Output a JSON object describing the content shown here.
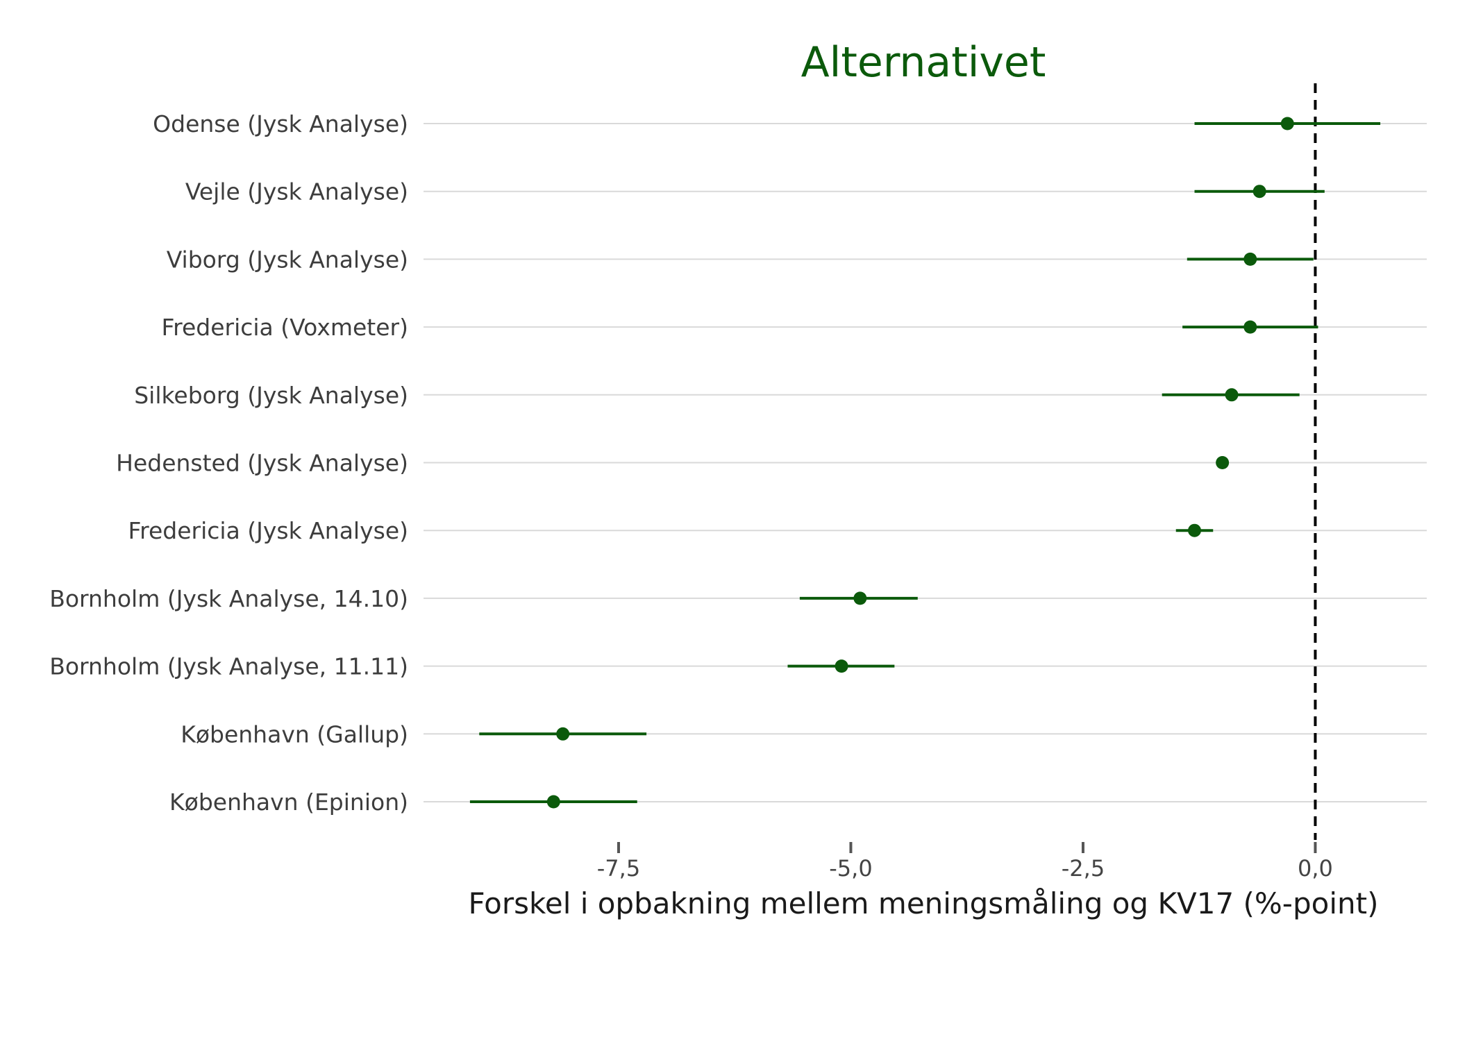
{
  "chart_data": {
    "type": "scatter",
    "title": "Alternativet",
    "xlabel": "Forskel i opbakning mellem meningsmåling og KV17 (%-point)",
    "ylabel": "",
    "xlim": [
      -9.6,
      1.2
    ],
    "x_ticks": [
      -7.5,
      -5.0,
      -2.5,
      0.0
    ],
    "x_tick_labels": [
      "-7,5",
      "-5,0",
      "-2,5",
      "0,0"
    ],
    "reference_line": 0.0,
    "grid": true,
    "color": "#0b5a0b",
    "points": [
      {
        "label": "Odense (Jysk Analyse)",
        "estimate": -0.3,
        "low": -1.3,
        "high": 0.7
      },
      {
        "label": "Vejle (Jysk Analyse)",
        "estimate": -0.6,
        "low": -1.3,
        "high": 0.1
      },
      {
        "label": "Viborg (Jysk Analyse)",
        "estimate": -0.7,
        "low": -1.38,
        "high": -0.02
      },
      {
        "label": "Fredericia (Voxmeter)",
        "estimate": -0.7,
        "low": -1.43,
        "high": 0.03
      },
      {
        "label": "Silkeborg (Jysk Analyse)",
        "estimate": -0.9,
        "low": -1.65,
        "high": -0.17
      },
      {
        "label": "Hedensted (Jysk Analyse)",
        "estimate": -1.0,
        "low": -1.0,
        "high": -1.0
      },
      {
        "label": "Fredericia (Jysk Analyse)",
        "estimate": -1.3,
        "low": -1.5,
        "high": -1.1
      },
      {
        "label": "Bornholm (Jysk Analyse, 14.10)",
        "estimate": -4.9,
        "low": -5.55,
        "high": -4.28
      },
      {
        "label": "Bornholm (Jysk Analyse, 11.11)",
        "estimate": -5.1,
        "low": -5.68,
        "high": -4.53
      },
      {
        "label": "København (Gallup)",
        "estimate": -8.1,
        "low": -9.0,
        "high": -7.2
      },
      {
        "label": "København (Epinion)",
        "estimate": -8.2,
        "low": -9.1,
        "high": -7.3
      }
    ]
  }
}
